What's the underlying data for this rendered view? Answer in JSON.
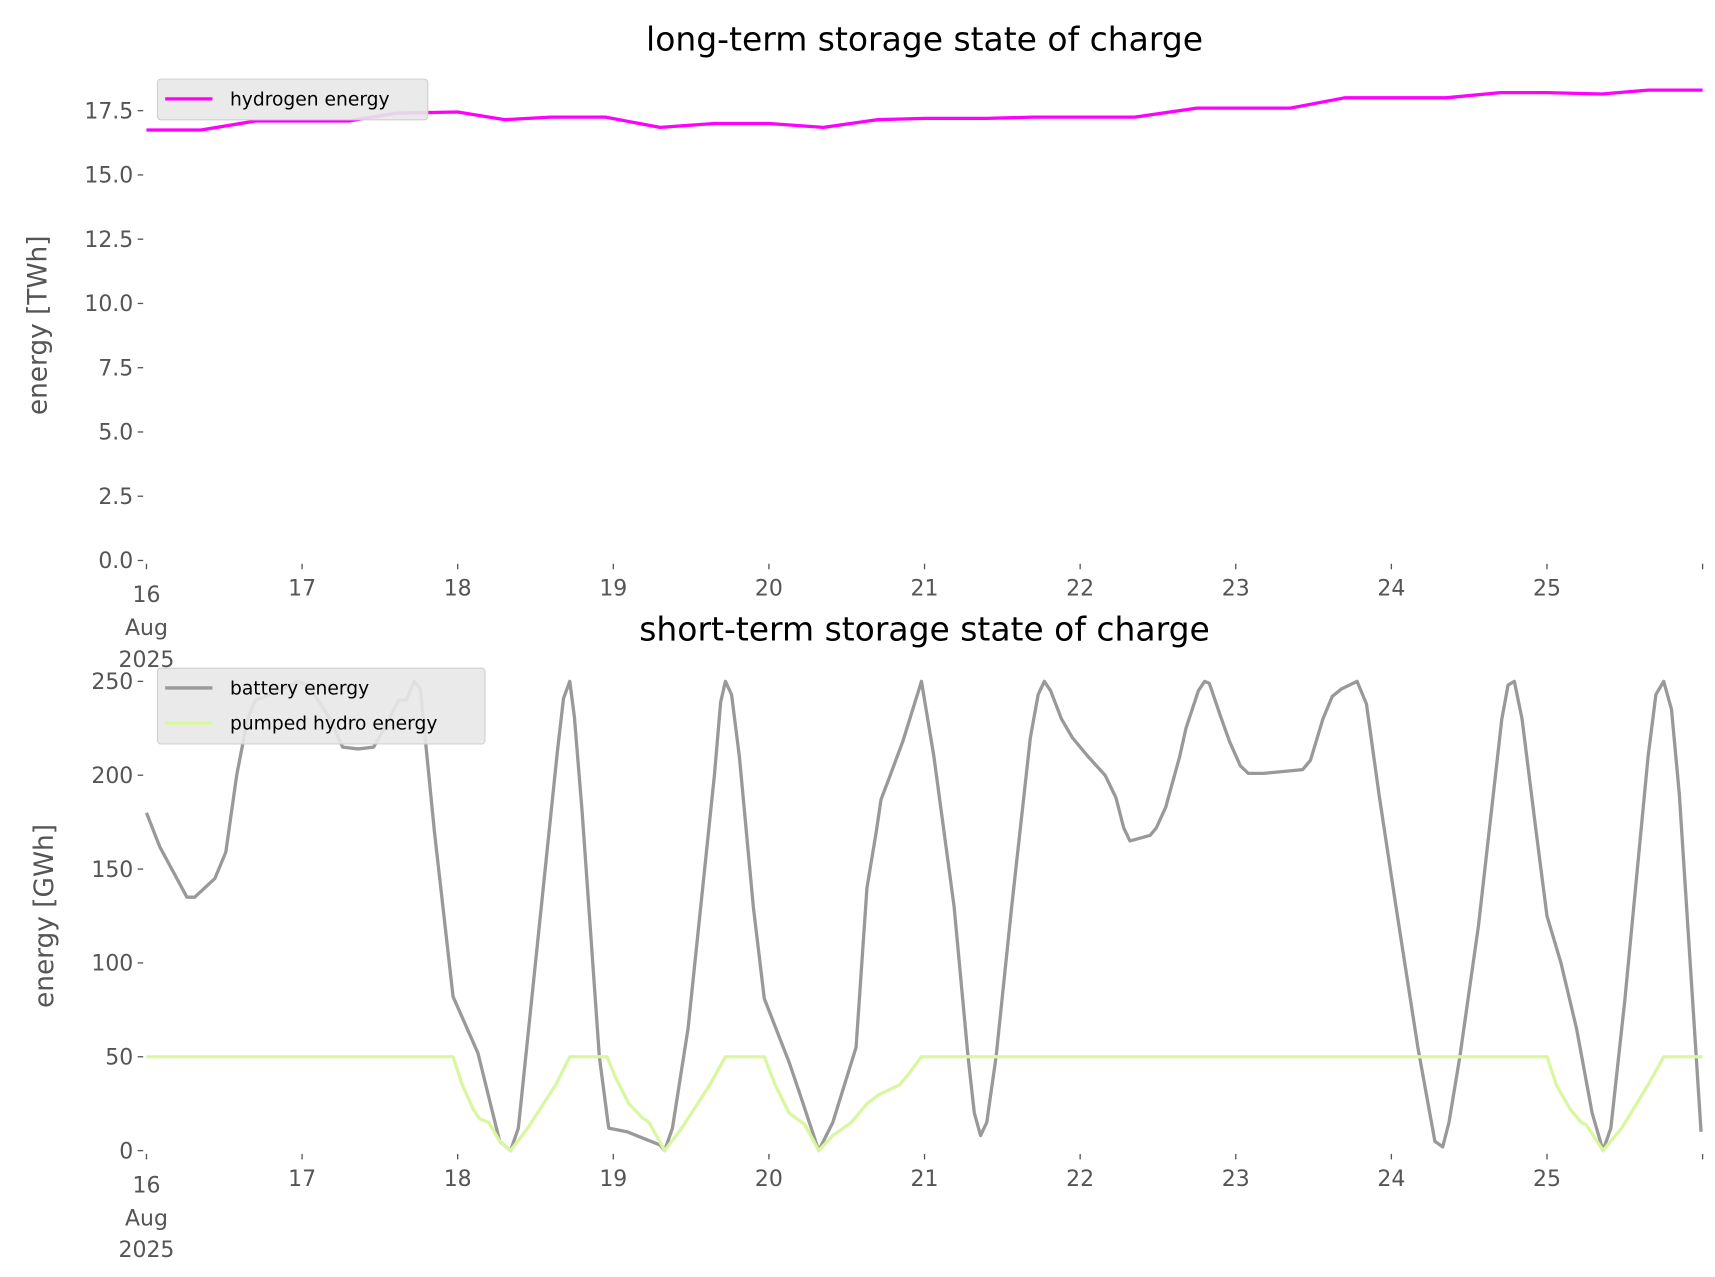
{
  "chart_data": [
    {
      "type": "line",
      "title": "long-term storage state of charge",
      "xlabel": "",
      "ylabel": "energy [TWh]",
      "xlim": [
        0,
        10
      ],
      "x_unit": "days since 16 Aug 2025 00:00",
      "ylim": [
        0,
        18.3
      ],
      "yticks": [
        0,
        2.5,
        5,
        7.5,
        10,
        12.5,
        15,
        17.5
      ],
      "ytick_labels": [
        "0.0",
        "2.5",
        "5.0",
        "7.5",
        "10.0",
        "12.5",
        "15.0",
        "17.5"
      ],
      "xticks": [
        0,
        1,
        2,
        3,
        4,
        5,
        6,
        7,
        8,
        9,
        10
      ],
      "xtick_labels": [
        "16",
        "17",
        "18",
        "19",
        "20",
        "21",
        "22",
        "23",
        "24",
        "25",
        ""
      ],
      "xtick_sublabels": [
        "Aug",
        "2025"
      ],
      "grid": false,
      "legend_position": "top-left",
      "series": [
        {
          "name": "hydrogen energy",
          "color": "#ff00ff",
          "x": [
            0,
            0.35,
            0.7,
            1.3,
            1.6,
            2.0,
            2.3,
            2.6,
            2.95,
            3.3,
            3.65,
            4.0,
            4.35,
            4.7,
            5.0,
            5.4,
            5.7,
            6.35,
            6.75,
            7.35,
            7.7,
            8.35,
            8.7,
            9.0,
            9.35,
            9.65,
            10
          ],
          "y": [
            16.75,
            16.75,
            17.1,
            17.1,
            17.4,
            17.45,
            17.15,
            17.25,
            17.25,
            16.85,
            17.0,
            17.0,
            16.85,
            17.15,
            17.2,
            17.2,
            17.25,
            17.25,
            17.6,
            17.6,
            18.0,
            18.0,
            18.2,
            18.2,
            18.15,
            18.3,
            18.3
          ]
        }
      ]
    },
    {
      "type": "line",
      "title": "short-term storage state of charge",
      "xlabel": "",
      "ylabel": "energy [GWh]",
      "xlim": [
        0,
        10
      ],
      "x_unit": "days since 16 Aug 2025 00:00",
      "ylim": [
        0,
        250
      ],
      "yticks": [
        0,
        50,
        100,
        150,
        200,
        250
      ],
      "ytick_labels": [
        "0",
        "50",
        "100",
        "150",
        "200",
        "250"
      ],
      "xticks": [
        0,
        1,
        2,
        3,
        4,
        5,
        6,
        7,
        8,
        9,
        10
      ],
      "xtick_labels": [
        "16",
        "17",
        "18",
        "19",
        "20",
        "21",
        "22",
        "23",
        "24",
        "25",
        ""
      ],
      "xtick_sublabels": [
        "Aug",
        "2025"
      ],
      "grid": false,
      "legend_position": "top-left",
      "series": [
        {
          "name": "battery energy",
          "color": "#999999",
          "x": [
            0,
            0.085,
            0.26,
            0.31,
            0.44,
            0.51,
            0.58,
            0.65,
            0.7,
            0.86,
            0.97,
            1.04,
            1.18,
            1.26,
            1.36,
            1.46,
            1.53,
            1.62,
            1.67,
            1.72,
            1.76,
            1.85,
            1.97,
            2.13,
            2.27,
            2.34,
            2.39,
            2.45,
            2.64,
            2.68,
            2.72,
            2.75,
            2.8,
            2.91,
            2.97,
            3.09,
            3.3,
            3.33,
            3.38,
            3.48,
            3.65,
            3.69,
            3.72,
            3.76,
            3.81,
            3.9,
            3.97,
            4.13,
            4.2,
            4.32,
            4.41,
            4.56,
            4.63,
            4.69,
            4.72,
            4.78,
            4.86,
            4.98,
            5.06,
            5.19,
            5.28,
            5.32,
            5.36,
            5.4,
            5.46,
            5.56,
            5.68,
            5.73,
            5.77,
            5.81,
            5.88,
            5.95,
            6.05,
            6.16,
            6.23,
            6.28,
            6.32,
            6.45,
            6.49,
            6.55,
            6.64,
            6.68,
            6.76,
            6.8,
            6.83,
            6.9,
            6.96,
            7.03,
            7.08,
            7.18,
            7.43,
            7.48,
            7.56,
            7.62,
            7.68,
            7.78,
            7.84,
            7.92,
            8.03,
            8.17,
            8.28,
            8.33,
            8.37,
            8.44,
            8.56,
            8.71,
            8.75,
            8.79,
            8.84,
            8.93,
            9.0,
            9.09,
            9.19,
            9.29,
            9.36,
            9.41,
            9.5,
            9.65,
            9.7,
            9.75,
            9.8,
            9.85,
            9.99
          ],
          "y": [
            180,
            162,
            135,
            135,
            145,
            159,
            200,
            230,
            240,
            245,
            250,
            248,
            230,
            215,
            214,
            215,
            225,
            240,
            240,
            250,
            246,
            170,
            82,
            52,
            5,
            0,
            12,
            60,
            212,
            241,
            250,
            231,
            180,
            50,
            12,
            10,
            3,
            0,
            12,
            65,
            200,
            239,
            250,
            243,
            210,
            130,
            81,
            47,
            30,
            0,
            15,
            55,
            140,
            170,
            187,
            200,
            218,
            250,
            210,
            130,
            50,
            20,
            8,
            15,
            50,
            130,
            220,
            243,
            250,
            245,
            230,
            220,
            210,
            200,
            188,
            172,
            165,
            168,
            172,
            183,
            210,
            225,
            245,
            250,
            249,
            232,
            218,
            205,
            201,
            201,
            203,
            208,
            230,
            242,
            246,
            250,
            238,
            190,
            130,
            55,
            5,
            2,
            15,
            50,
            120,
            230,
            248,
            250,
            230,
            170,
            125,
            100,
            65,
            20,
            0,
            12,
            80,
            210,
            243,
            250,
            235,
            190,
            10
          ]
        },
        {
          "name": "pumped hydro energy",
          "color": "#d9f7a0",
          "x": [
            0,
            1.97,
            2.03,
            2.1,
            2.14,
            2.2,
            2.27,
            2.34,
            2.45,
            2.63,
            2.72,
            2.96,
            3.02,
            3.1,
            3.18,
            3.23,
            3.33,
            3.44,
            3.62,
            3.72,
            3.97,
            4.04,
            4.13,
            4.23,
            4.32,
            4.41,
            4.53,
            4.63,
            4.71,
            4.84,
            4.89,
            4.98,
            9.0,
            9.06,
            9.15,
            9.22,
            9.25,
            9.36,
            9.48,
            9.65,
            9.75,
            10
          ],
          "y": [
            50,
            50,
            35,
            22,
            17,
            15,
            5,
            0,
            12,
            35,
            50,
            50,
            38,
            25,
            18,
            15,
            0,
            12,
            35,
            50,
            50,
            35,
            20,
            14,
            0,
            8,
            15,
            25,
            30,
            35,
            40,
            50,
            50,
            35,
            22,
            15,
            14,
            0,
            12,
            35,
            50,
            50
          ]
        }
      ]
    }
  ]
}
